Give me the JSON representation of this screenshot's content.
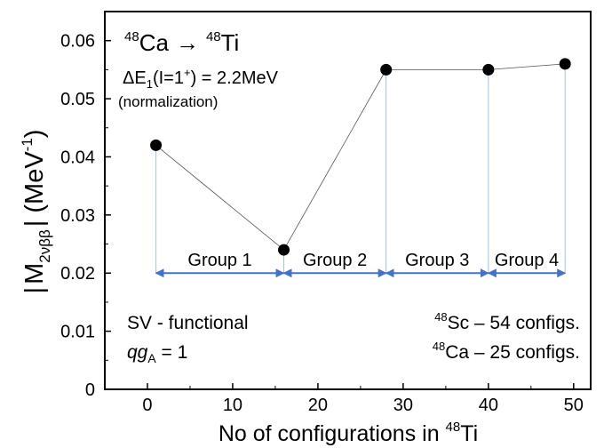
{
  "chart_data": {
    "type": "line",
    "title": {
      "mass_a": "48",
      "nuc_a": "Ca",
      "arrow": "→",
      "mass_b": "48",
      "nuc_b": "Ti"
    },
    "subtitle": {
      "delta": "ΔE",
      "sub": "1",
      "paren_open": "(I=1",
      "sup": "+",
      "rest": ") = 2.2MeV"
    },
    "note": "(normalization)",
    "xlabel": {
      "text": "No of configurations in ",
      "mass": "48",
      "nuc": "Ti"
    },
    "ylabel": {
      "bar_l": "|",
      "M": "M",
      "sub": "2νββ",
      "bar_r": "|",
      "unit_open": " (MeV",
      "unit_sup": "-1",
      "unit_close": ")"
    },
    "xlim": [
      -5,
      52
    ],
    "ylim": [
      0,
      0.065
    ],
    "x_ticks": [
      "0",
      "10",
      "20",
      "30",
      "40",
      "50"
    ],
    "y_ticks": [
      "0",
      "0.01",
      "0.02",
      "0.03",
      "0.04",
      "0.05",
      "0.06"
    ],
    "grid": false,
    "series": [
      {
        "x": [
          1,
          16,
          28,
          40,
          49
        ],
        "y": [
          0.042,
          0.024,
          0.055,
          0.055,
          0.056
        ]
      }
    ],
    "groups": [
      {
        "label": "Group 1",
        "x_start": 1,
        "x_end": 16
      },
      {
        "label": "Group 2",
        "x_start": 16,
        "x_end": 28
      },
      {
        "label": "Group 3",
        "x_start": 28,
        "x_end": 40
      },
      {
        "label": "Group 4",
        "x_start": 40,
        "x_end": 49
      }
    ],
    "group_arrow_y": 0.02,
    "colors": {
      "marker": "#000000",
      "line": "#555555",
      "arrow": "#4472C4",
      "guide": "#9DC3E6"
    },
    "annotations": {
      "functional": "SV - functional",
      "qga": {
        "q": "qg",
        "sub": "A",
        "rest": " =  1"
      },
      "sc": {
        "mass": "48",
        "nuc": "Sc",
        "rest": " –  54 configs."
      },
      "ca": {
        "mass": "48",
        "nuc": "Ca",
        "rest": "  – 25 configs."
      }
    }
  }
}
